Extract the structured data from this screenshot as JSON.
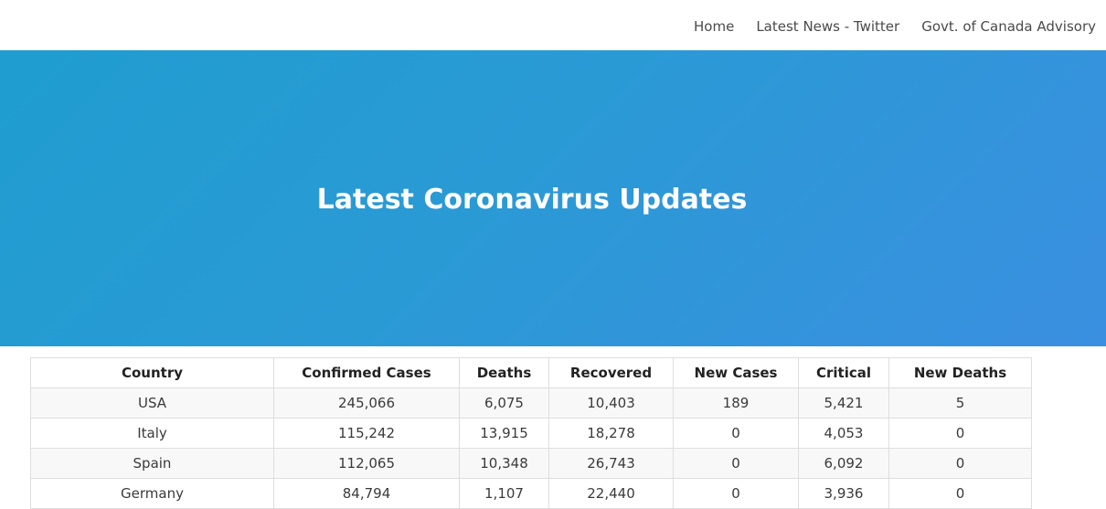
{
  "nav": {
    "links": [
      "Home",
      "Latest News - Twitter",
      "Govt. of Canada Advisory"
    ]
  },
  "hero": {
    "title": "Latest Coronavirus Updates",
    "gradient_start": "#1f9dd0",
    "gradient_end": "#3a8fe0"
  },
  "table": {
    "headers": [
      "Country",
      "Confirmed Cases",
      "Deaths",
      "Recovered",
      "New Cases",
      "Critical",
      "New Deaths"
    ],
    "rows": [
      [
        "USA",
        "245,066",
        "6,075",
        "10,403",
        "189",
        "5,421",
        "5"
      ],
      [
        "Italy",
        "115,242",
        "13,915",
        "18,278",
        "0",
        "4,053",
        "0"
      ],
      [
        "Spain",
        "112,065",
        "10,348",
        "26,743",
        "0",
        "6,092",
        "0"
      ],
      [
        "Germany",
        "84,794",
        "1,107",
        "22,440",
        "0",
        "3,936",
        "0"
      ]
    ]
  }
}
